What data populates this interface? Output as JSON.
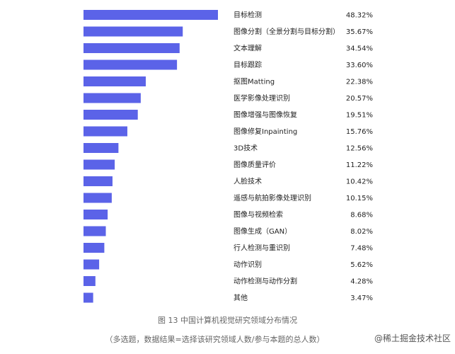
{
  "chart_data": {
    "type": "bar",
    "orientation": "horizontal",
    "bar_color": "#5b63e8",
    "categories": [
      "目标检测",
      "图像分割（全景分割与目标分割）",
      "文本理解",
      "目标跟踪",
      "抠图Matting",
      "医学影像处理识别",
      "图像增强与图像恢复",
      "图像修复Inpainting",
      "3D技术",
      "图像质量评价",
      "人脸技术",
      "遥感与航拍影像处理识别",
      "图像与视频检索",
      "图像生成（GAN）",
      "行人检测与重识别",
      "动作识别",
      "动作检测与动作分割",
      "其他"
    ],
    "values": [
      48.32,
      35.67,
      34.54,
      33.6,
      22.38,
      20.57,
      19.51,
      15.76,
      12.56,
      11.22,
      10.42,
      10.15,
      8.68,
      8.02,
      7.48,
      5.62,
      4.28,
      3.47
    ],
    "value_labels": [
      "48.32%",
      "35.67%",
      "34.54%",
      "33.60%",
      "22.38%",
      "20.57%",
      "19.51%",
      "15.76%",
      "12.56%",
      "11.22%",
      "10.42%",
      "10.15%",
      "8.68%",
      "8.02%",
      "7.48%",
      "5.62%",
      "4.28%",
      "3.47%"
    ],
    "title": "图 13  中国计算机视觉研究领域分布情况",
    "subtitle": "（多选题，数据结果=选择该研究领域人数/参与本题的总人数）",
    "xlim": [
      0,
      48.32
    ]
  },
  "watermark": "@稀土掘金技术社区"
}
